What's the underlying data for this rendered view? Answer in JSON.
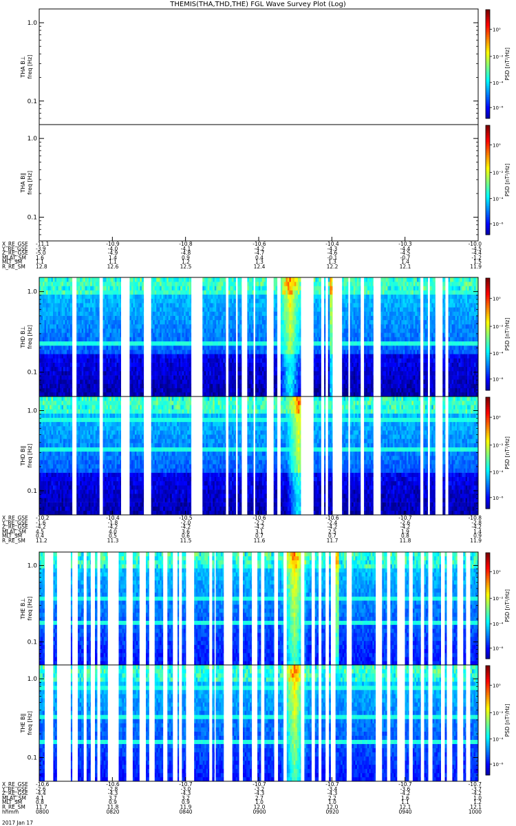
{
  "chart_data": {
    "type": "heatmap",
    "title": "THEMIS(THA,THD,THE) FGL Wave Survey Plot (Log)",
    "panels": [
      {
        "label": "THA B⊥",
        "ylabel": "freq [Hz]",
        "yticks": [
          "1.0",
          "0.1"
        ],
        "colorbar_label": "PSD [nT²/Hz]",
        "data": "none"
      },
      {
        "label": "THA B∥",
        "ylabel": "freq [Hz]",
        "yticks": [
          "1.0",
          "0.1"
        ],
        "colorbar_label": "PSD [nT²/Hz]",
        "data": "none"
      },
      {
        "label": "THD B⊥",
        "ylabel": "freq [Hz]",
        "yticks": [
          "1.0",
          "0.1"
        ],
        "colorbar_label": "PSD [nT²/Hz]",
        "data": "spectrogram"
      },
      {
        "label": "THD B∥",
        "ylabel": "freq [Hz]",
        "yticks": [
          "1.0",
          "0.1"
        ],
        "colorbar_label": "PSD [nT²/Hz]",
        "data": "spectrogram"
      },
      {
        "label": "THE B⊥",
        "ylabel": "freq [Hz]",
        "yticks": [
          "1.0",
          "0.1"
        ],
        "colorbar_label": "PSD [nT²/Hz]",
        "data": "spectrogram"
      },
      {
        "label": "THE B∥",
        "ylabel": "freq [Hz]",
        "yticks": [
          "1.0",
          "0.1"
        ],
        "colorbar_label": "PSD [nT²/Hz]",
        "data": "spectrogram"
      }
    ],
    "colorbar_ticks": [
      "10⁰",
      "10⁻²",
      "10⁻⁴",
      "10⁻⁶"
    ],
    "y_scale": "log",
    "ylim": [
      0.05,
      1.5
    ],
    "ephemeris": [
      {
        "labels": [
          "X_RE_GSE",
          "Y_RE_GSE",
          "Z_RE_GSE",
          "MLAT_SM",
          "MLT_SM",
          "R_RE_SM"
        ],
        "columns": [
          [
            "-11.1",
            "-3.9",
            "-5.0",
            "1.6",
            "1.1",
            "12.8"
          ],
          [
            "-10.9",
            "-4.0",
            "-4.9",
            "1.4",
            "1.1",
            "12.6"
          ],
          [
            "-10.8",
            "-4.1",
            "-4.8",
            "0.9",
            "1.2",
            "12.5"
          ],
          [
            "-10.6",
            "-4.2",
            "-4.7",
            "0.4",
            "1.3",
            "12.4"
          ],
          [
            "-10.4",
            "-4.3",
            "-4.6",
            "-0.1",
            "1.3",
            "12.2"
          ],
          [
            "-10.3",
            "-4.4",
            "-4.5",
            "-0.7",
            "1.4",
            "12.1"
          ],
          [
            "-10.0",
            "-4.5",
            "-4.4",
            "-1.2",
            "1.5",
            "11.9"
          ]
        ]
      },
      {
        "labels": [
          "X_RE_GSE",
          "Y_RE_GSE",
          "Z_RE_GSE",
          "MLAT_SM",
          "MLT_SM",
          "R_RE_SM"
        ],
        "columns": [
          [
            "-10.2",
            "-1.6",
            "-4.2",
            "4.5",
            "0.4",
            "11.2"
          ],
          [
            "-10.4",
            "-1.8",
            "-4.2",
            "4.0",
            "0.5",
            "11.3"
          ],
          [
            "-10.5",
            "-2.0",
            "-4.2",
            "3.6",
            "0.6",
            "11.5"
          ],
          [
            "-10.6",
            "-2.2",
            "-4.2",
            "3.1",
            "0.7",
            "11.6"
          ],
          [
            "-10.6",
            "-2.4",
            "-4.2",
            "2.5",
            "0.7",
            "11.7"
          ],
          [
            "-10.7",
            "-2.6",
            "-4.2",
            "1.9",
            "0.8",
            "11.8"
          ],
          [
            "-10.8",
            "-2.8",
            "-4.2",
            "1.4",
            "0.9",
            "11.9"
          ]
        ]
      },
      {
        "labels": [
          "X_RE_GSE",
          "Y_RE_GSE",
          "Z_RE_GSE",
          "MLAT_SM",
          "MLT_SM",
          "R_RE_SM",
          "hhmm"
        ],
        "columns": [
          [
            "-10.6",
            "-2.6",
            "-4.4",
            "4.1",
            "0.8",
            "11.7",
            "0800"
          ],
          [
            "-10.6",
            "-2.8",
            "-4.3",
            "3.7",
            "0.9",
            "11.8",
            "0820"
          ],
          [
            "-10.7",
            "-3.0",
            "-4.3",
            "3.2",
            "0.9",
            "11.9",
            "0840"
          ],
          [
            "-10.7",
            "-3.2",
            "-4.3",
            "2.7",
            "1.0",
            "12.0",
            "0900"
          ],
          [
            "-10.7",
            "-3.4",
            "-4.3",
            "2.2",
            "1.0",
            "12.0",
            "0920"
          ],
          [
            "-10.7",
            "-3.6",
            "-4.2",
            "1.6",
            "1.1",
            "12.1",
            "0940"
          ],
          [
            "-10.7",
            "-3.7",
            "-4.2",
            "1.0",
            "1.2",
            "12.1",
            "1000"
          ]
        ]
      }
    ],
    "date": "2017 Jan 17"
  }
}
